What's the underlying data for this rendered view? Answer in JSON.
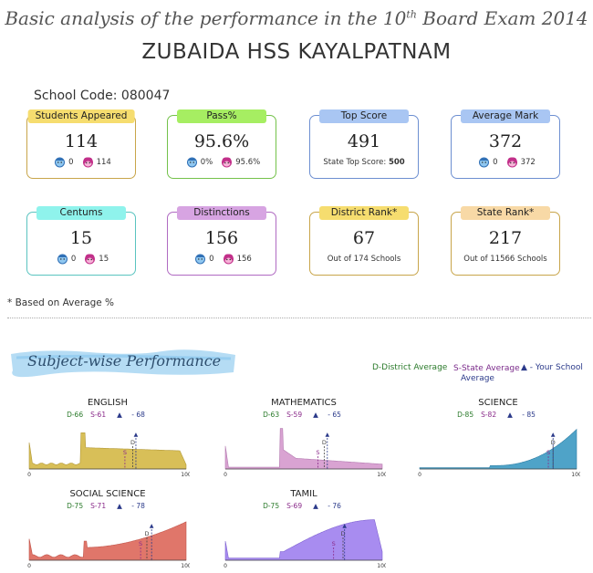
{
  "header": {
    "title_pre": "Basic analysis of the performance in the 10",
    "title_sup": "th",
    "title_post": " Board Exam 2014",
    "school_name": "ZUBAIDA HSS KAYALPATNAM",
    "school_code": "School Code: 080047"
  },
  "cards": [
    {
      "label": "Students Appeared",
      "value": "114",
      "boys": "0",
      "girls": "114",
      "color": "#f6dd6f",
      "border": "#c8a54a"
    },
    {
      "label": "Pass%",
      "value": "95.6%",
      "boys": "0%",
      "girls": "95.6%",
      "color": "#a6ee62",
      "border": "#74c24a"
    },
    {
      "label": "Top Score",
      "value": "491",
      "sub_label": "State Top Score: ",
      "sub_value": "500",
      "color": "#a9c6f3",
      "border": "#6d8fd1"
    },
    {
      "label": "Average Mark",
      "value": "372",
      "boys": "0",
      "girls": "372",
      "color": "#a9c6f3",
      "border": "#6d8fd1"
    },
    {
      "label": "Centums",
      "value": "15",
      "boys": "0",
      "girls": "15",
      "color": "#8ff3ec",
      "border": "#5ac4c0"
    },
    {
      "label": "Distinctions",
      "value": "156",
      "boys": "0",
      "girls": "156",
      "color": "#d7a4e2",
      "border": "#b06ac2"
    },
    {
      "label": "District Rank*",
      "value": "67",
      "sub_label": "Out of 174 Schools",
      "color": "#f6dd6f",
      "border": "#c8a54a"
    },
    {
      "label": "State Rank*",
      "value": "217",
      "sub_label": "Out of 11566 Schools",
      "color": "#f8d9a6",
      "border": "#c8a54a"
    }
  ],
  "note": "* Based on Average %",
  "section_title": "Subject-wise Performance",
  "legend": {
    "district": "D-District Average",
    "state": "S-State Average",
    "school": "- Your School",
    "average": "Average"
  },
  "icons": {
    "boy": "boy-icon",
    "girl": "girl-icon",
    "triangle": "school-marker-icon"
  },
  "chart_data": [
    {
      "type": "area",
      "title": "ENGLISH",
      "district": 66,
      "state": 61,
      "school": 68,
      "d_label": "D-66",
      "s_label": "S-61",
      "y_label": "- 68",
      "x": [
        0,
        100
      ],
      "xticks": [
        "0",
        "100"
      ],
      "color": "#d8bf58",
      "line": "#b39a3a",
      "profile": "flat"
    },
    {
      "type": "area",
      "title": "MATHEMATICS",
      "district": 63,
      "state": 59,
      "school": 65,
      "d_label": "D-63",
      "s_label": "S-59",
      "y_label": "- 65",
      "x": [
        0,
        100
      ],
      "xticks": [
        "0",
        "100"
      ],
      "color": "#d9a3d2",
      "line": "#b37ab0",
      "profile": "low"
    },
    {
      "type": "area",
      "title": "SCIENCE",
      "district": 85,
      "state": 82,
      "school": 85,
      "d_label": "D-85",
      "s_label": "S-82",
      "y_label": "- 85",
      "x": [
        0,
        100
      ],
      "xticks": [
        "0",
        "100"
      ],
      "color": "#4fa3c8",
      "line": "#2f7fa5",
      "profile": "rising"
    },
    {
      "type": "area",
      "title": "SOCIAL SCIENCE",
      "district": 75,
      "state": 71,
      "school": 78,
      "d_label": "D-75",
      "s_label": "S-71",
      "y_label": "- 78",
      "x": [
        0,
        100
      ],
      "xticks": [
        "0",
        "100"
      ],
      "color": "#e0766a",
      "line": "#c0544a",
      "profile": "mid"
    },
    {
      "type": "area",
      "title": "TAMIL",
      "district": 75,
      "state": 69,
      "school": 76,
      "d_label": "D-75",
      "s_label": "S-69",
      "y_label": "- 76",
      "x": [
        0,
        100
      ],
      "xticks": [
        "0",
        "100"
      ],
      "color": "#a88cf0",
      "line": "#7e62d0",
      "profile": "hump"
    }
  ]
}
